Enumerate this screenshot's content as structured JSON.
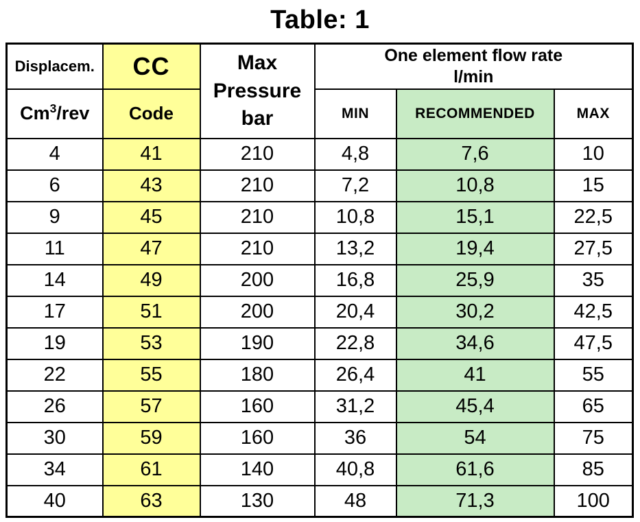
{
  "title": "Table: 1",
  "colors": {
    "code_column_bg": "#FFFF99",
    "recommended_column_bg": "#C8EBC5",
    "border": "#000000",
    "background": "#FFFFFF"
  },
  "header": {
    "displacement_label": "Displacem.",
    "displacement_unit_base": "Cm",
    "displacement_unit_sup": "3",
    "displacement_unit_rest": "/rev",
    "cc_label": "CC",
    "code_label": "Code",
    "max_pressure_line1": "Max",
    "max_pressure_line2": "Pressure",
    "max_pressure_line3": "bar",
    "flow_group_line1": "One element flow rate",
    "flow_group_line2": "l/min",
    "min_label": "MIN",
    "recommended_label": "RECOMMENDED",
    "max_label": "MAX"
  },
  "rows": [
    {
      "displacement": "4",
      "code": "41",
      "pressure": "210",
      "min": "4,8",
      "recommended": "7,6",
      "max": "10"
    },
    {
      "displacement": "6",
      "code": "43",
      "pressure": "210",
      "min": "7,2",
      "recommended": "10,8",
      "max": "15"
    },
    {
      "displacement": "9",
      "code": "45",
      "pressure": "210",
      "min": "10,8",
      "recommended": "15,1",
      "max": "22,5"
    },
    {
      "displacement": "11",
      "code": "47",
      "pressure": "210",
      "min": "13,2",
      "recommended": "19,4",
      "max": "27,5"
    },
    {
      "displacement": "14",
      "code": "49",
      "pressure": "200",
      "min": "16,8",
      "recommended": "25,9",
      "max": "35"
    },
    {
      "displacement": "17",
      "code": "51",
      "pressure": "200",
      "min": "20,4",
      "recommended": "30,2",
      "max": "42,5"
    },
    {
      "displacement": "19",
      "code": "53",
      "pressure": "190",
      "min": "22,8",
      "recommended": "34,6",
      "max": "47,5"
    },
    {
      "displacement": "22",
      "code": "55",
      "pressure": "180",
      "min": "26,4",
      "recommended": "41",
      "max": "55"
    },
    {
      "displacement": "26",
      "code": "57",
      "pressure": "160",
      "min": "31,2",
      "recommended": "45,4",
      "max": "65"
    },
    {
      "displacement": "30",
      "code": "59",
      "pressure": "160",
      "min": "36",
      "recommended": "54",
      "max": "75"
    },
    {
      "displacement": "34",
      "code": "61",
      "pressure": "140",
      "min": "40,8",
      "recommended": "61,6",
      "max": "85"
    },
    {
      "displacement": "40",
      "code": "63",
      "pressure": "130",
      "min": "48",
      "recommended": "71,3",
      "max": "100"
    }
  ]
}
